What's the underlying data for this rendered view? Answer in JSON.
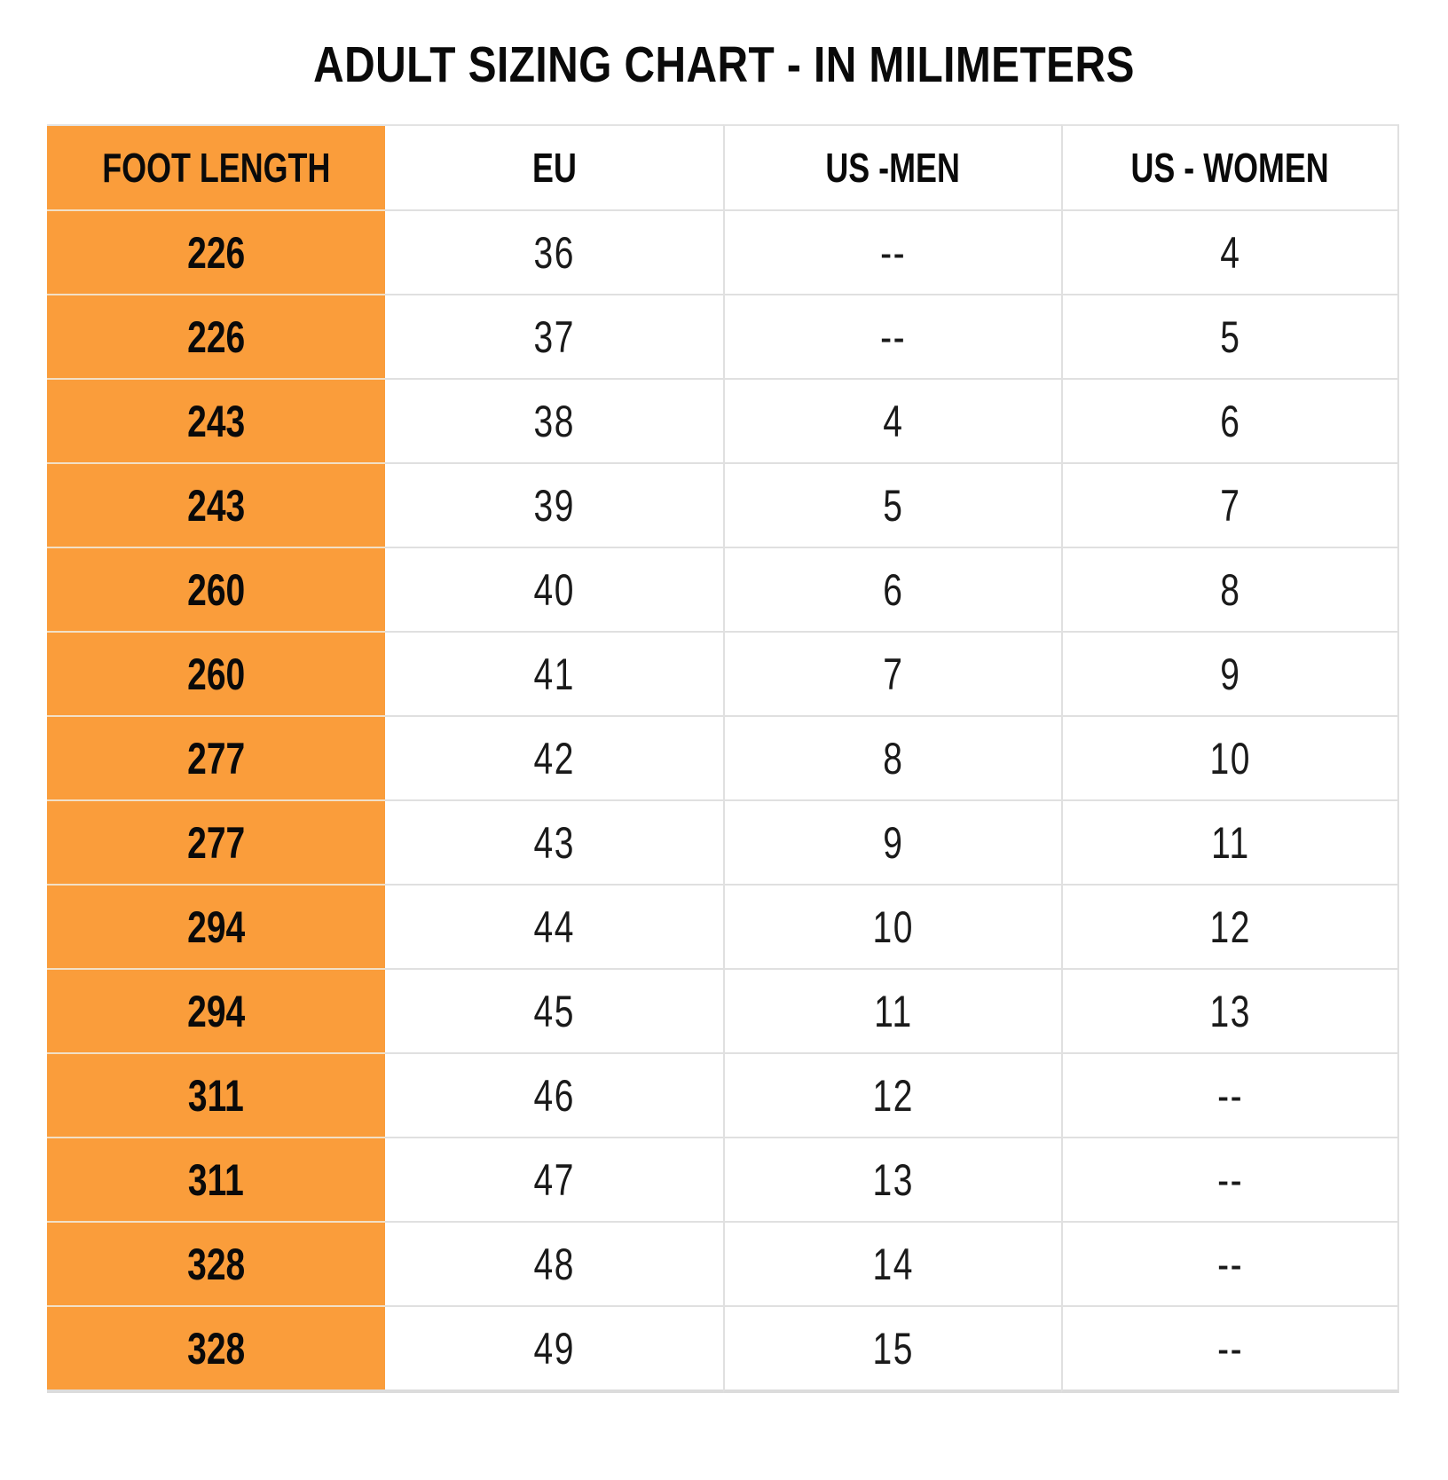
{
  "title": "ADULT SIZING CHART - IN MILIMETERS",
  "colors": {
    "accent_orange": "#FA9D3B",
    "grid_line": "#E0E0E0",
    "orange_row_divider": "#F2E0C6",
    "text": "#111111",
    "background": "#FFFFFF"
  },
  "chart_data": {
    "type": "table",
    "title": "ADULT SIZING CHART - IN MILIMETERS",
    "empty_marker": "--",
    "columns": [
      {
        "key": "foot_length",
        "label": "FOOT LENGTH"
      },
      {
        "key": "eu",
        "label": "EU"
      },
      {
        "key": "us_men",
        "label": "US -MEN"
      },
      {
        "key": "us_women",
        "label": "US - WOMEN"
      }
    ],
    "rows": [
      {
        "foot_length": "226",
        "eu": "36",
        "us_men": "--",
        "us_women": "4"
      },
      {
        "foot_length": "226",
        "eu": "37",
        "us_men": "--",
        "us_women": "5"
      },
      {
        "foot_length": "243",
        "eu": "38",
        "us_men": "4",
        "us_women": "6"
      },
      {
        "foot_length": "243",
        "eu": "39",
        "us_men": "5",
        "us_women": "7"
      },
      {
        "foot_length": "260",
        "eu": "40",
        "us_men": "6",
        "us_women": "8"
      },
      {
        "foot_length": "260",
        "eu": "41",
        "us_men": "7",
        "us_women": "9"
      },
      {
        "foot_length": "277",
        "eu": "42",
        "us_men": "8",
        "us_women": "10"
      },
      {
        "foot_length": "277",
        "eu": "43",
        "us_men": "9",
        "us_women": "11"
      },
      {
        "foot_length": "294",
        "eu": "44",
        "us_men": "10",
        "us_women": "12"
      },
      {
        "foot_length": "294",
        "eu": "45",
        "us_men": "11",
        "us_women": "13"
      },
      {
        "foot_length": "311",
        "eu": "46",
        "us_men": "12",
        "us_women": "--"
      },
      {
        "foot_length": "311",
        "eu": "47",
        "us_men": "13",
        "us_women": "--"
      },
      {
        "foot_length": "328",
        "eu": "48",
        "us_men": "14",
        "us_women": "--"
      },
      {
        "foot_length": "328",
        "eu": "49",
        "us_men": "15",
        "us_women": "--"
      }
    ]
  }
}
